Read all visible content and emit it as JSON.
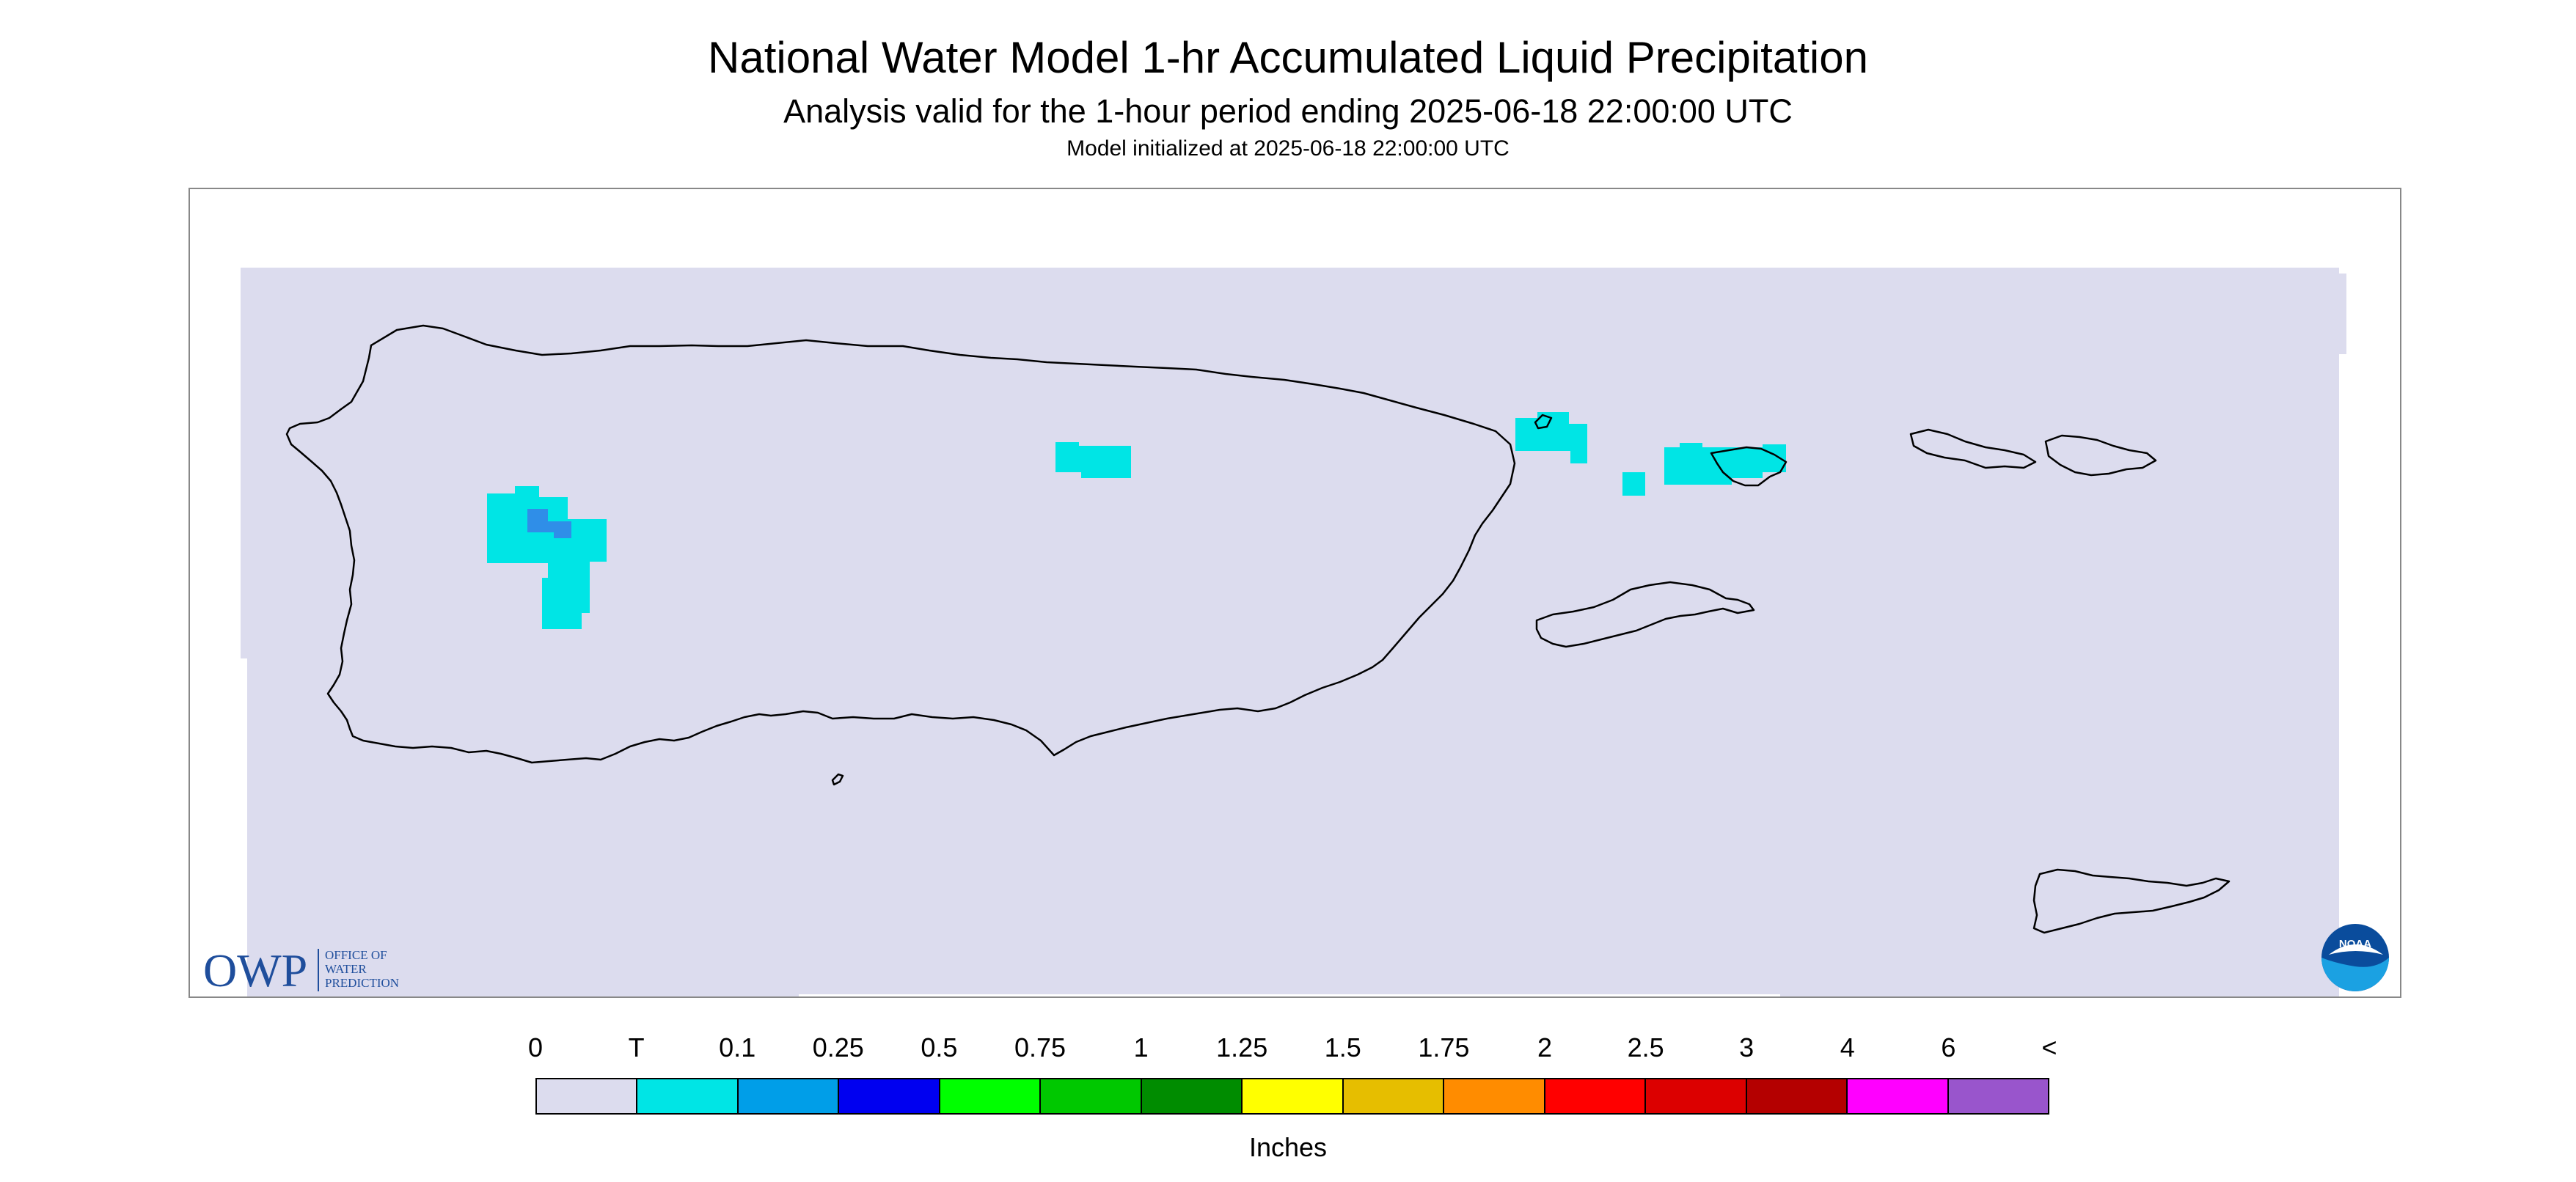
{
  "header": {
    "title": "National Water Model 1-hr Accumulated Liquid Precipitation",
    "subtitle": "Analysis valid for the 1-hour period ending 2025-06-18 22:00:00 UTC",
    "init": "Model initialized at 2025-06-18 22:00:00 UTC"
  },
  "logos": {
    "owp_mark": "OWP",
    "owp_text_1": "OFFICE OF",
    "owp_text_2": "WATER",
    "owp_text_3": "PREDICTION",
    "noaa": "NOAA"
  },
  "legend": {
    "unit_label": "Inches",
    "labels": [
      "0",
      "T",
      "0.1",
      "0.25",
      "0.5",
      "0.75",
      "1",
      "1.25",
      "1.5",
      "1.75",
      "2",
      "2.5",
      "3",
      "4",
      "6",
      "<"
    ],
    "colors": [
      "#dcdcee",
      "#00e5e5",
      "#009ee8",
      "#0000f0",
      "#00ff00",
      "#00c800",
      "#008c00",
      "#ffff00",
      "#e6be00",
      "#ff8c00",
      "#ff0000",
      "#dc0000",
      "#b40000",
      "#ff00ff",
      "#9955cc"
    ]
  },
  "colors": {
    "background_field": "#dcdcee",
    "trace": "#00e5e5",
    "light_blue": "#009ee8",
    "outline": "#000000"
  }
}
